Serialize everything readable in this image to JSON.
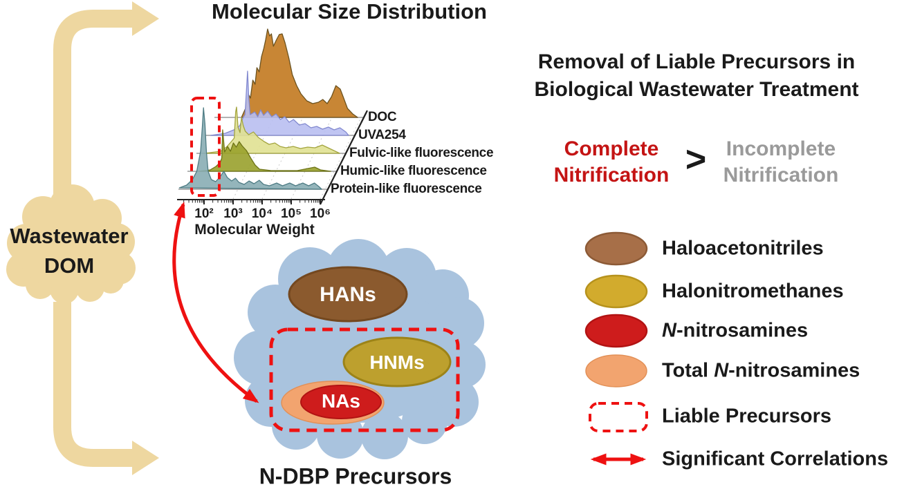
{
  "palette": {
    "tan": "#eed7a0",
    "blue-cloud": "#a9c3de",
    "red": "#ee1111",
    "red-text": "#c41414",
    "gray-text": "#9a9a9a",
    "ink": "#1a1a1a",
    "hans-fill": "#8b5a2e",
    "hans-stroke": "#74481f",
    "hnms-fill": "#bda02e",
    "hnms-stroke": "#9c8318",
    "na-red": "#ce1c1c",
    "na-red-stroke": "#b21313",
    "salmon": "#f2a46f",
    "salmon-stroke": "#e29057",
    "leg-brown": "#a76f48",
    "leg-brown-stroke": "#8c5a36",
    "leg-yellow": "#d2ab2d",
    "leg-yellow-stroke": "#b6921c"
  },
  "titles": {
    "msd": "Molecular Size Distribution",
    "right1": "Removal of Liable Precursors in",
    "right2": "Biological Wastewater Treatment"
  },
  "left_cloud": {
    "line1": "Wastewater",
    "line2": "DOM"
  },
  "comparison": {
    "complete1": "Complete",
    "complete2": "Nitrification",
    "gt": ">",
    "incomplete1": "Incomplete",
    "incomplete2": "Nitrification"
  },
  "ndbp": {
    "hans": "HANs",
    "hnms": "HNMs",
    "nas": "NAs",
    "caption": "N-DBP Precursors"
  },
  "chart_data": {
    "type": "ridgeline",
    "title": "Molecular Size Distribution",
    "xlabel": "Molecular Weight",
    "x_scale": "log10",
    "x_range": [
      1.1,
      6.07
    ],
    "x_ticks": [
      2,
      3,
      4,
      5,
      6
    ],
    "x_tick_labels": [
      "10²",
      "10³",
      "10⁴",
      "10⁵",
      "10⁶"
    ],
    "y_unit": "relative intensity (drawn px height)",
    "grid": "faint dotted diagonals at each decade",
    "legend_position": "labels on diagonal axis at right of each baseline",
    "annotation": "red dashed box highlights the low-molecular-weight peak near 10^2 on the protein-like trace",
    "series": [
      {
        "name": "DOC",
        "fill": "#c2791f",
        "stroke": "#6b521f",
        "points": [
          [
            2.05,
            0
          ],
          [
            2.2,
            14
          ],
          [
            2.28,
            34
          ],
          [
            2.36,
            28
          ],
          [
            2.44,
            54
          ],
          [
            2.52,
            48
          ],
          [
            2.58,
            72
          ],
          [
            2.66,
            66
          ],
          [
            2.74,
            88
          ],
          [
            2.82,
            100
          ],
          [
            2.88,
            112
          ],
          [
            2.95,
            128
          ],
          [
            3.02,
            118
          ],
          [
            3.08,
            121
          ],
          [
            3.15,
            103
          ],
          [
            3.25,
            112
          ],
          [
            3.35,
            120
          ],
          [
            3.45,
            121
          ],
          [
            3.55,
            108
          ],
          [
            3.68,
            86
          ],
          [
            3.8,
            62
          ],
          [
            3.95,
            46
          ],
          [
            4.1,
            34
          ],
          [
            4.3,
            24
          ],
          [
            4.5,
            20
          ],
          [
            4.7,
            22
          ],
          [
            4.85,
            26
          ],
          [
            5.0,
            20
          ],
          [
            5.15,
            30
          ],
          [
            5.3,
            46
          ],
          [
            5.45,
            41
          ],
          [
            5.55,
            30
          ],
          [
            5.7,
            13
          ],
          [
            5.88,
            5
          ],
          [
            6.05,
            0
          ]
        ]
      },
      {
        "name": "UVA254",
        "fill": "#b9bff1",
        "stroke": "#8289cf",
        "points": [
          [
            1.3,
            0
          ],
          [
            1.8,
            3
          ],
          [
            2.1,
            8
          ],
          [
            2.3,
            14
          ],
          [
            2.42,
            26
          ],
          [
            2.48,
            30
          ],
          [
            2.53,
            65
          ],
          [
            2.57,
            93
          ],
          [
            2.61,
            55
          ],
          [
            2.66,
            30
          ],
          [
            2.82,
            34
          ],
          [
            2.92,
            27
          ],
          [
            3.02,
            37
          ],
          [
            3.12,
            29
          ],
          [
            3.26,
            35
          ],
          [
            3.4,
            27
          ],
          [
            3.55,
            31
          ],
          [
            3.7,
            23
          ],
          [
            3.85,
            27
          ],
          [
            4.0,
            19
          ],
          [
            4.15,
            23
          ],
          [
            4.35,
            15
          ],
          [
            4.55,
            17
          ],
          [
            4.75,
            11
          ],
          [
            4.95,
            13
          ],
          [
            5.15,
            9
          ],
          [
            5.35,
            12
          ],
          [
            5.55,
            8
          ],
          [
            5.75,
            11
          ],
          [
            5.95,
            5
          ],
          [
            6.05,
            0
          ]
        ]
      },
      {
        "name": "Fulvic-like fluorescence",
        "fill": "#e0e192",
        "stroke": "#a3a43e",
        "points": [
          [
            1.4,
            0
          ],
          [
            1.95,
            3
          ],
          [
            2.15,
            9
          ],
          [
            2.3,
            16
          ],
          [
            2.42,
            22
          ],
          [
            2.47,
            60
          ],
          [
            2.5,
            67
          ],
          [
            2.55,
            38
          ],
          [
            2.62,
            30
          ],
          [
            2.67,
            52
          ],
          [
            2.73,
            40
          ],
          [
            2.8,
            32
          ],
          [
            2.92,
            27
          ],
          [
            3.08,
            31
          ],
          [
            3.25,
            23
          ],
          [
            3.45,
            17
          ],
          [
            3.62,
            13
          ],
          [
            3.82,
            15
          ],
          [
            4.0,
            10
          ],
          [
            4.2,
            8
          ],
          [
            4.45,
            10
          ],
          [
            4.7,
            7
          ],
          [
            4.95,
            9
          ],
          [
            5.2,
            8
          ],
          [
            5.45,
            12
          ],
          [
            5.65,
            8
          ],
          [
            5.85,
            4
          ],
          [
            6.05,
            0
          ]
        ]
      },
      {
        "name": "Humic-like fluorescence",
        "fill": "#99a12c",
        "stroke": "#6d7317",
        "points": [
          [
            1.5,
            0
          ],
          [
            1.9,
            2
          ],
          [
            2.1,
            7
          ],
          [
            2.25,
            13
          ],
          [
            2.3,
            19
          ],
          [
            2.33,
            60
          ],
          [
            2.4,
            28
          ],
          [
            2.5,
            36
          ],
          [
            2.6,
            29
          ],
          [
            2.7,
            41
          ],
          [
            2.8,
            35
          ],
          [
            2.9,
            43
          ],
          [
            3.0,
            37
          ],
          [
            3.15,
            30
          ],
          [
            3.3,
            19
          ],
          [
            3.45,
            9
          ],
          [
            3.6,
            3
          ],
          [
            4.0,
            1
          ],
          [
            4.9,
            1
          ],
          [
            5.5,
            6
          ],
          [
            5.7,
            2
          ],
          [
            6.05,
            0
          ]
        ]
      },
      {
        "name": "Protein-like fluorescence",
        "fill": "#88adb4",
        "stroke": "#4d7b83",
        "points": [
          [
            1.15,
            2
          ],
          [
            1.4,
            6
          ],
          [
            1.6,
            14
          ],
          [
            1.75,
            26
          ],
          [
            1.88,
            55
          ],
          [
            1.94,
            90
          ],
          [
            1.98,
            118
          ],
          [
            2.03,
            95
          ],
          [
            2.08,
            55
          ],
          [
            2.14,
            26
          ],
          [
            2.25,
            14
          ],
          [
            2.4,
            11
          ],
          [
            2.55,
            18
          ],
          [
            2.68,
            26
          ],
          [
            2.8,
            17
          ],
          [
            2.95,
            12
          ],
          [
            3.08,
            16
          ],
          [
            3.2,
            10
          ],
          [
            3.38,
            7
          ],
          [
            3.55,
            12
          ],
          [
            3.72,
            8
          ],
          [
            3.9,
            13
          ],
          [
            4.05,
            7
          ],
          [
            4.25,
            5
          ],
          [
            4.5,
            9
          ],
          [
            4.7,
            5
          ],
          [
            4.95,
            9
          ],
          [
            5.15,
            5
          ],
          [
            5.4,
            9
          ],
          [
            5.6,
            5
          ],
          [
            5.8,
            9
          ],
          [
            5.95,
            4
          ],
          [
            6.05,
            0
          ]
        ]
      }
    ]
  },
  "legend": {
    "items": [
      {
        "swatch": "brown-ellipse",
        "label": "Haloacetonitriles"
      },
      {
        "swatch": "yellow-ellipse",
        "label": "Halonitromethanes"
      },
      {
        "swatch": "red-ellipse",
        "label_italic": "N",
        "label_rest": "-nitrosamines"
      },
      {
        "swatch": "orange-ellipse",
        "label_prefix": "Total ",
        "label_italic": "N",
        "label_rest": "-nitrosamines"
      },
      {
        "swatch": "dashed-box",
        "label": "Liable Precursors"
      },
      {
        "swatch": "double-arrow",
        "label": "Significant Correlations"
      }
    ]
  }
}
